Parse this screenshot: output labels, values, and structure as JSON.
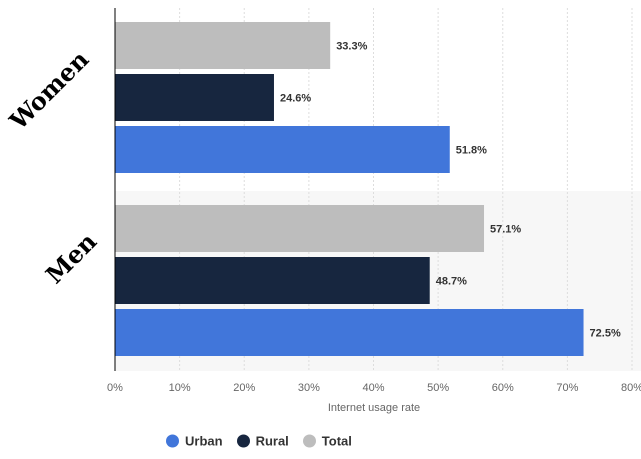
{
  "chart_data": {
    "type": "bar",
    "orientation": "horizontal",
    "categories": [
      "Women",
      "Men"
    ],
    "series": [
      {
        "name": "Total",
        "values": [
          33.3,
          57.1
        ],
        "color": "#bdbdbd"
      },
      {
        "name": "Rural",
        "values": [
          24.6,
          48.7
        ],
        "color": "#17263f"
      },
      {
        "name": "Urban",
        "values": [
          51.8,
          72.5
        ],
        "color": "#4176da"
      }
    ],
    "value_labels": [
      [
        "33.3%",
        "57.1%"
      ],
      [
        "24.6%",
        "48.7%"
      ],
      [
        "51.8%",
        "72.5%"
      ]
    ],
    "xlabel": "Internet usage rate",
    "xlim": [
      0,
      80
    ],
    "xticks": [
      "0%",
      "10%",
      "20%",
      "30%",
      "40%",
      "50%",
      "60%",
      "70%",
      "80%"
    ],
    "grid": true,
    "legend": {
      "placement": "bottom",
      "items": [
        {
          "label": "Urban",
          "color": "#4176da"
        },
        {
          "label": "Rural",
          "color": "#17263f"
        },
        {
          "label": "Total",
          "color": "#bdbdbd"
        }
      ]
    }
  }
}
